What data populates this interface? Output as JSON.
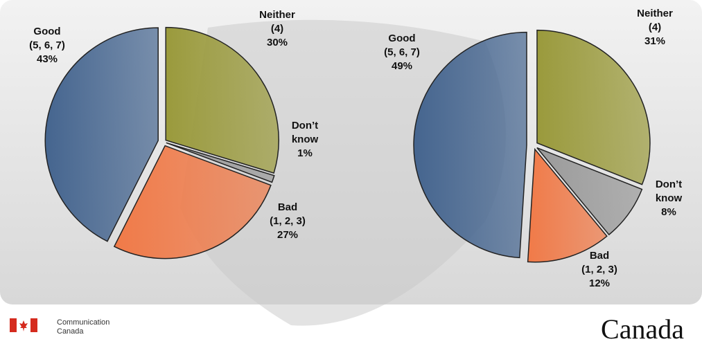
{
  "chart_data": [
    {
      "type": "pie",
      "categories": [
        "Neither\n(4)",
        "Don’t\nknow",
        "Bad\n(1, 2, 3)",
        "Good\n(5, 6, 7)"
      ],
      "values": [
        30,
        1,
        27,
        43
      ],
      "value_labels": [
        "30%",
        "1%",
        "27%",
        "43%"
      ],
      "colors": [
        "#9a9a3c",
        "#9a9a9a",
        "#f07a48",
        "#45658f"
      ]
    },
    {
      "type": "pie",
      "categories": [
        "Neither\n(4)",
        "Don’t\nknow",
        "Bad\n(1, 2, 3)",
        "Good\n(5, 6, 7)"
      ],
      "values": [
        31,
        8,
        12,
        49
      ],
      "value_labels": [
        "31%",
        "8%",
        "12%",
        "49%"
      ],
      "colors": [
        "#9a9a3c",
        "#9a9a9a",
        "#f07a48",
        "#45658f"
      ]
    }
  ],
  "footer": {
    "department": [
      "Communication",
      "Canada"
    ],
    "wordmark": "Canada"
  }
}
